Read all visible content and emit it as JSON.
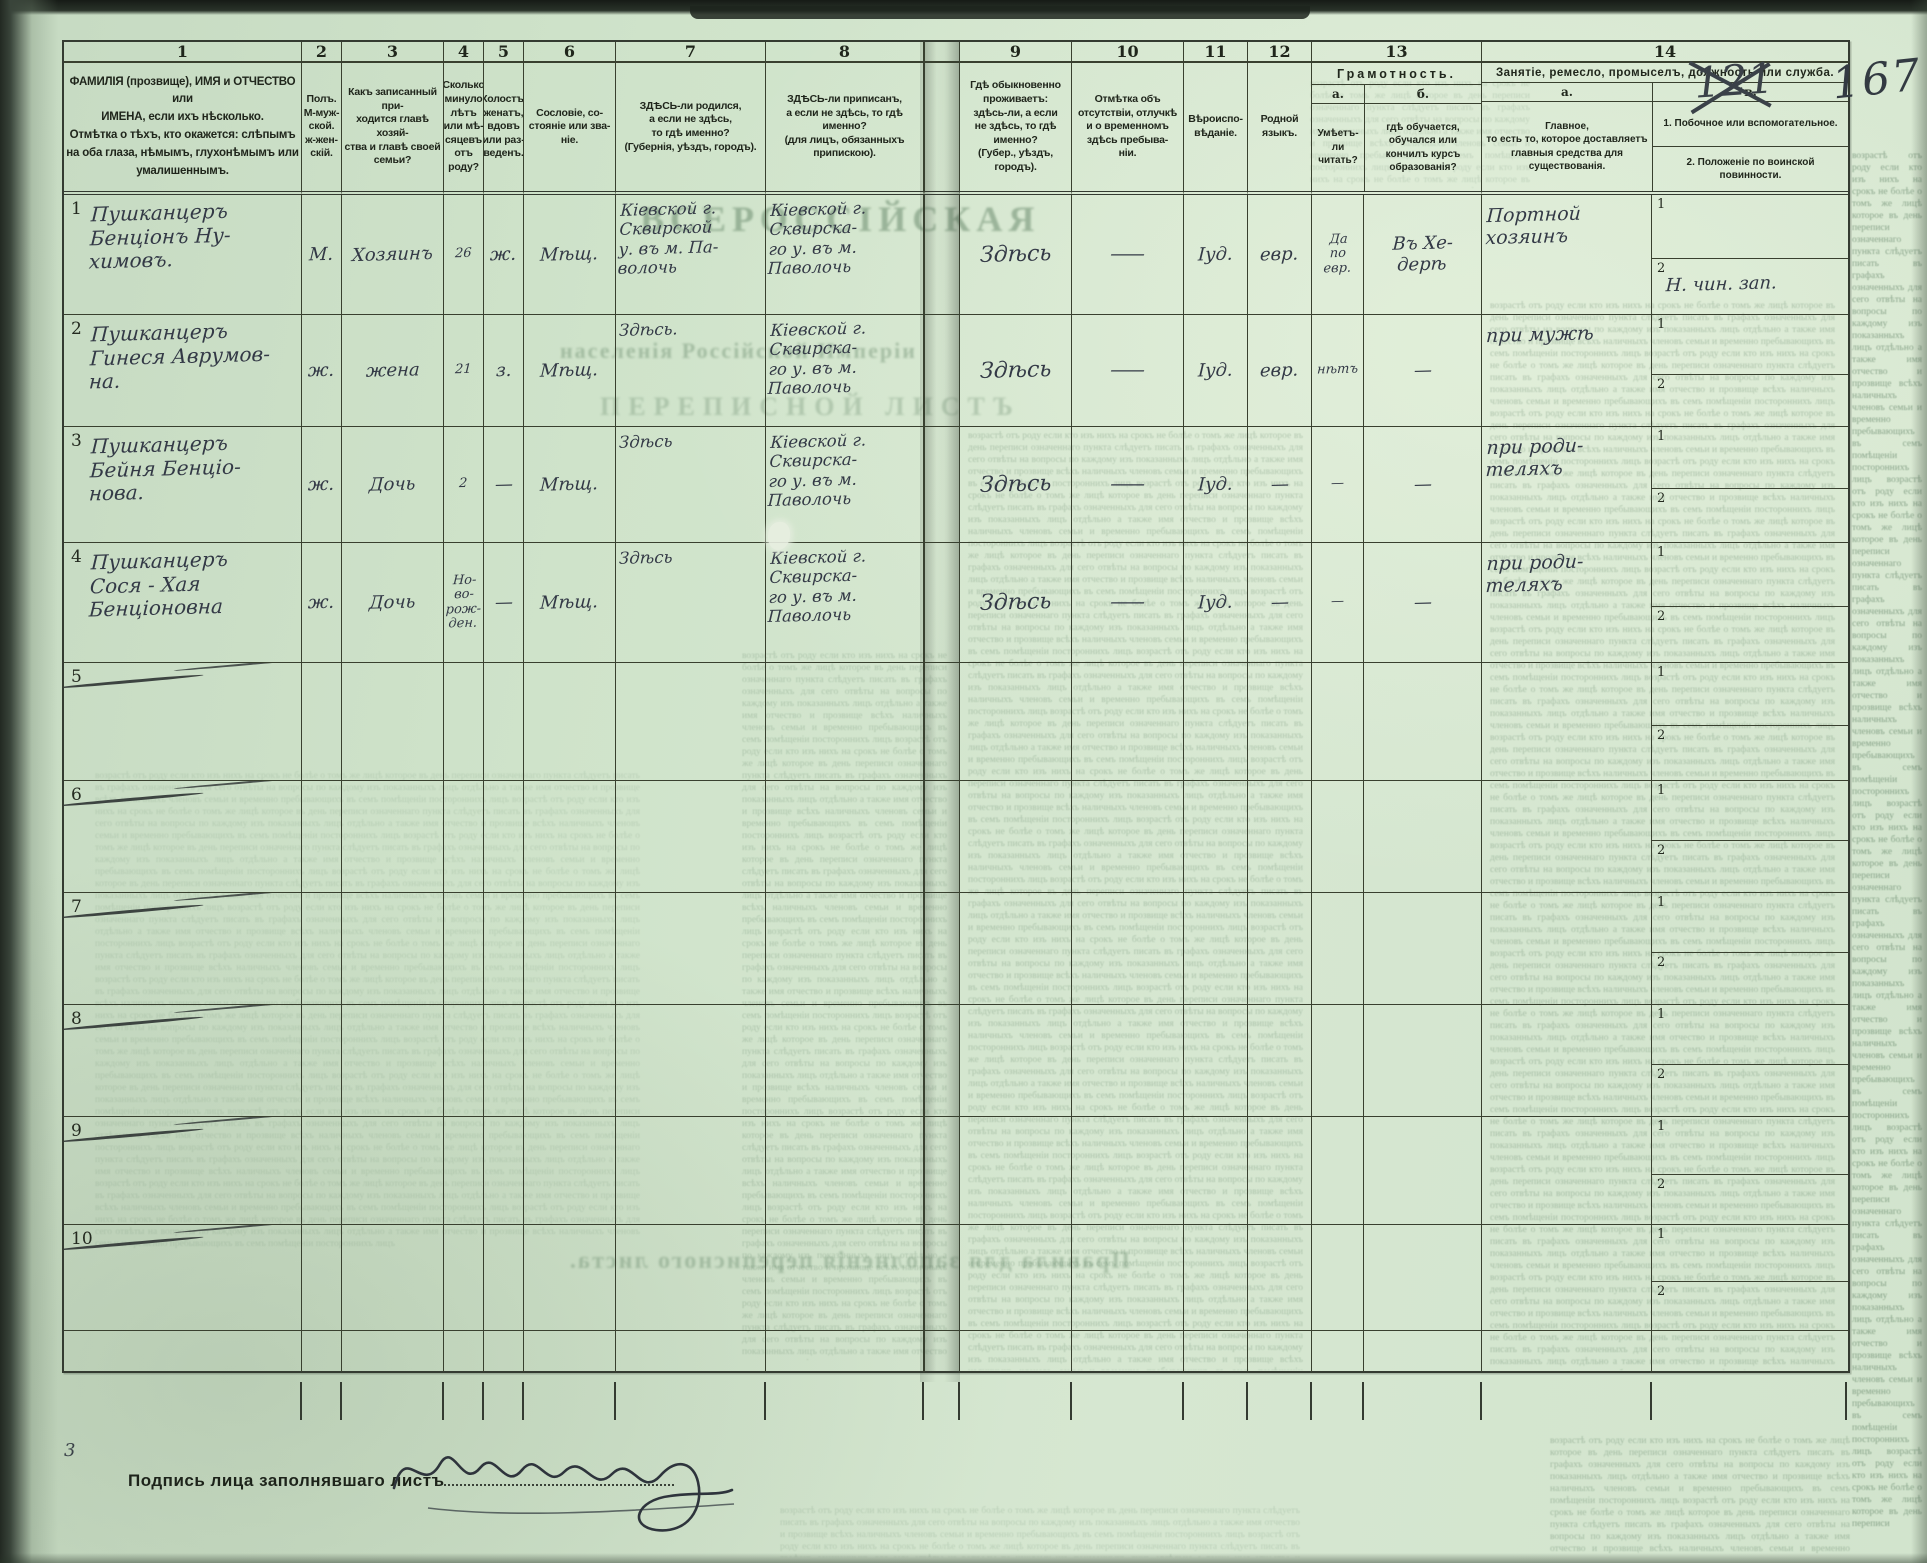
{
  "page": {
    "numbers": {
      "crossed": "121",
      "current": "167"
    },
    "corner_mark": "3",
    "signature_label": "Подпись лица заполнявшаго листъ"
  },
  "ghost": {
    "headline1": "ВСЕРОССІЙСКАЯ",
    "headline2": "населенія Россійской Имперіи",
    "headline3": "ПЕРЕПИСНОЙ ЛИСТЪ",
    "headline4": "Правила для заполненія переписного листа.",
    "filler": "возрастѣ отъ роду если кто изъ нихъ на срокъ не болѣе о томъ же лицѣ которое въ день переписи означеннаго пункта слѣдуетъ писать въ графахъ означенныхъ для сего отвѣты на вопросы по каждому изъ показанныхъ лицъ отдѣльно а также имя отчество и прозвище всѣхъ наличныхъ членовъ семьи и временно пребывающихъ въ семъ помѣщеніи постороннихъ лицъ "
  },
  "header": {
    "cols": [
      {
        "num": "1",
        "text": "ФАМИЛІЯ (прозвище), ИМЯ и ОТЧЕСТВО или\nИМЕНА, если ихъ нѣсколько.\nОтмѣтка о тѣхъ, кто окажется: слѣпымъ\nна оба глаза, нѣмымъ, глухонѣмымъ или\nумалишеннымъ."
      },
      {
        "num": "2",
        "text": "Полъ.\nМ-муж-\nской.\nж-жен-\nскій."
      },
      {
        "num": "3",
        "text": "Какъ записанный при-\nходится главѣ хозяй-\nства и главѣ своей\nсемьи?"
      },
      {
        "num": "4",
        "text": "Сколько\nминуло\nлѣтъ\nили мѣ-\nсяцевъ\nотъ роду?"
      },
      {
        "num": "5",
        "text": "Холостъ,\nженатъ,\nвдовъ\nили раз-\nведенъ."
      },
      {
        "num": "6",
        "text": "Сословіе, со-\nстояніе или зва-\nніе."
      },
      {
        "num": "7",
        "text": "ЗДѢСЬ-ли родился,\nа если не здѣсь,\nто гдѣ именно?\n(Губернія, уѣздъ, городъ)."
      },
      {
        "num": "8",
        "text": "ЗДѢСЬ-ли приписанъ,\nа если не здѣсь, то гдѣ\nименно?\n(для лицъ, обязанныхъ\nприпискою)."
      },
      {
        "num": "9",
        "text": "Гдѣ обыкновенно\nпроживаетъ:\nздѣсь-ли, а если\nне здѣсь, то гдѣ\nименно?\n(Губер., уѣздъ, городъ)."
      },
      {
        "num": "10",
        "text": "Отмѣтка объ\nотсутствіи, отлучкѣ\nи о временномъ\nздѣсь пребыва-\nніи."
      },
      {
        "num": "11",
        "text": "Вѣроиспо-\nвѣданіе."
      },
      {
        "num": "12",
        "text": "Родной\nязыкъ."
      }
    ],
    "col13": {
      "num": "13",
      "title": "Грамотность.",
      "a_label": "a.",
      "b_label": "б.",
      "a_text": "Умѣетъ-\nли\nчитать?",
      "b_text": "гдѣ обучается,\nобучался или\nкончилъ курсъ\nобразованія?"
    },
    "col14": {
      "num": "14",
      "title": "Занятіе, ремесло, промыселъ, должность или служба.",
      "a_label": "a.",
      "b_label": "в.",
      "a_text": "Главное,\nто есть то, которое доставляетъ\nглавныя средства для существованія.",
      "b_text1": "1. Побочное или вспомогательное.",
      "b_text2": "2. Положеніе по воинской повинности.",
      "side_numbers": [
        "1",
        "2"
      ]
    }
  },
  "rows": [
    {
      "num": "1",
      "crossed": false,
      "name": "Пушканцеръ\nБенціонъ Ну-\nхимовъ.",
      "sex": "М.",
      "relation": "Хозяинъ",
      "age": "26",
      "marital": "ж.",
      "estate": "Мѣщ.",
      "birthplace": "Кіевской г.\nСквирской\nу. въ м. Па-\nволочь",
      "registered": "Кіевской г.\nСквирска-\nго у. въ м.\nПаволочь",
      "residence": "Здѣсь",
      "absence": "—",
      "religion": "Іуд.",
      "language": "евр.",
      "literacy_a": "Да\nпо\nевр.",
      "literacy_b": "Въ Хе-\nдерѣ",
      "occupation_main": "Портной\nхозяинъ",
      "occupation_side_1": "",
      "occupation_side_2": "Н. чин. зап."
    },
    {
      "num": "2",
      "crossed": false,
      "name": "Пушканцеръ\nГинеся Аврумов-\nна.",
      "sex": "ж.",
      "relation": "жена",
      "age": "21",
      "marital": "з.",
      "estate": "Мѣщ.",
      "birthplace": "Здѣсь.",
      "registered": "Кіевской г.\nСквирска-\nго у. въ м.\nПаволочь",
      "residence": "Здѣсь",
      "absence": "—",
      "religion": "Іуд.",
      "language": "евр.",
      "literacy_a": "нѣтъ",
      "literacy_b": "—",
      "occupation_main": "при мужѣ",
      "occupation_side_1": "",
      "occupation_side_2": ""
    },
    {
      "num": "3",
      "crossed": false,
      "name": "Пушканцеръ\nБейня Бенціо-\nнова.",
      "sex": "ж.",
      "relation": "Дочь",
      "age": "2",
      "marital": "—",
      "estate": "Мѣщ.",
      "birthplace": "Здѣсь",
      "registered": "Кіевской г.\nСквирска-\nго у. въ м.\nПаволочь",
      "residence": "Здѣсь",
      "absence": "—",
      "religion": "Іуд.",
      "language": "—",
      "literacy_a": "—",
      "literacy_b": "—",
      "occupation_main": "при роди-\nтеляхъ",
      "occupation_side_1": "",
      "occupation_side_2": ""
    },
    {
      "num": "4",
      "crossed": false,
      "name": "Пушканцеръ\nСося - Хая\nБенціоновна",
      "sex": "ж.",
      "relation": "Дочь",
      "age": "Но-\nво-\nрож-\nден.",
      "marital": "—",
      "estate": "Мѣщ.",
      "birthplace": "Здѣсь",
      "registered": "Кіевской г.\nСквирска-\nго у. въ м.\nПаволочь",
      "residence": "Здѣсь",
      "absence": "—",
      "religion": "Іуд.",
      "language": "—",
      "literacy_a": "—",
      "literacy_b": "—",
      "occupation_main": "при роди-\nтеляхъ",
      "occupation_side_1": "",
      "occupation_side_2": ""
    },
    {
      "num": "5",
      "crossed": true
    },
    {
      "num": "6",
      "crossed": true
    },
    {
      "num": "7",
      "crossed": true
    },
    {
      "num": "8",
      "crossed": true
    },
    {
      "num": "9",
      "crossed": true
    },
    {
      "num": "10",
      "crossed": true
    }
  ]
}
